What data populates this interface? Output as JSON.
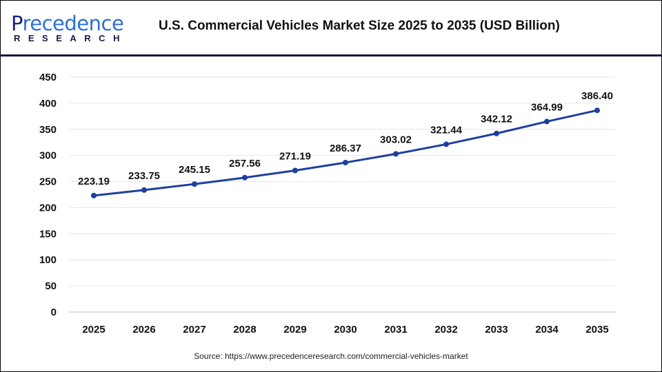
{
  "header": {
    "logo_text": "Precedence RESEARCH",
    "title": "U.S. Commercial Vehicles Market Size 2025 to 2035 (USD Billion)"
  },
  "source": "Source: https://www.precedenceresearch.com/commercial-vehicles-market",
  "chart_data": {
    "type": "line",
    "title": "U.S. Commercial Vehicles Market Size 2025 to 2035 (USD Billion)",
    "xlabel": "",
    "ylabel": "",
    "categories": [
      "2025",
      "2026",
      "2027",
      "2028",
      "2029",
      "2030",
      "2031",
      "2032",
      "2033",
      "2034",
      "2035"
    ],
    "values": [
      223.19,
      233.75,
      245.15,
      257.56,
      271.19,
      286.37,
      303.02,
      321.44,
      342.12,
      364.99,
      386.4
    ],
    "data_labels": [
      "223.19",
      "233.75",
      "245.15",
      "257.56",
      "271.19",
      "286.37",
      "303.02",
      "321.44",
      "342.12",
      "364.99",
      "386.40"
    ],
    "ylim": [
      0,
      450
    ],
    "yticks": [
      0,
      50,
      100,
      150,
      200,
      250,
      300,
      350,
      400,
      450
    ],
    "grid": true,
    "line_color": "#1f3f9e"
  }
}
